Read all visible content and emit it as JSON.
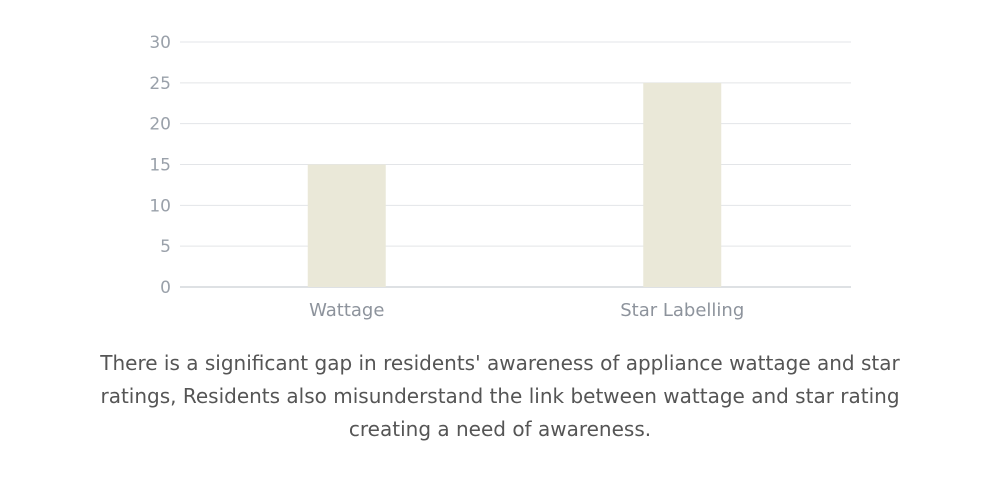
{
  "chart_data": {
    "type": "bar",
    "categories": [
      "Wattage",
      "Star Labelling"
    ],
    "values": [
      15,
      25
    ],
    "ylim": [
      0,
      30
    ],
    "yticks": [
      0,
      5,
      10,
      15,
      20,
      25,
      30
    ],
    "grid": true,
    "bar_color": "#eae8d8",
    "grid_color": "#e3e5e8",
    "axis_color": "#d4d7db"
  },
  "caption": "There is a significant gap in residents' awareness of appliance wattage and star ratings, Residents also misunderstand the link between wattage and star rating creating a need of awareness."
}
